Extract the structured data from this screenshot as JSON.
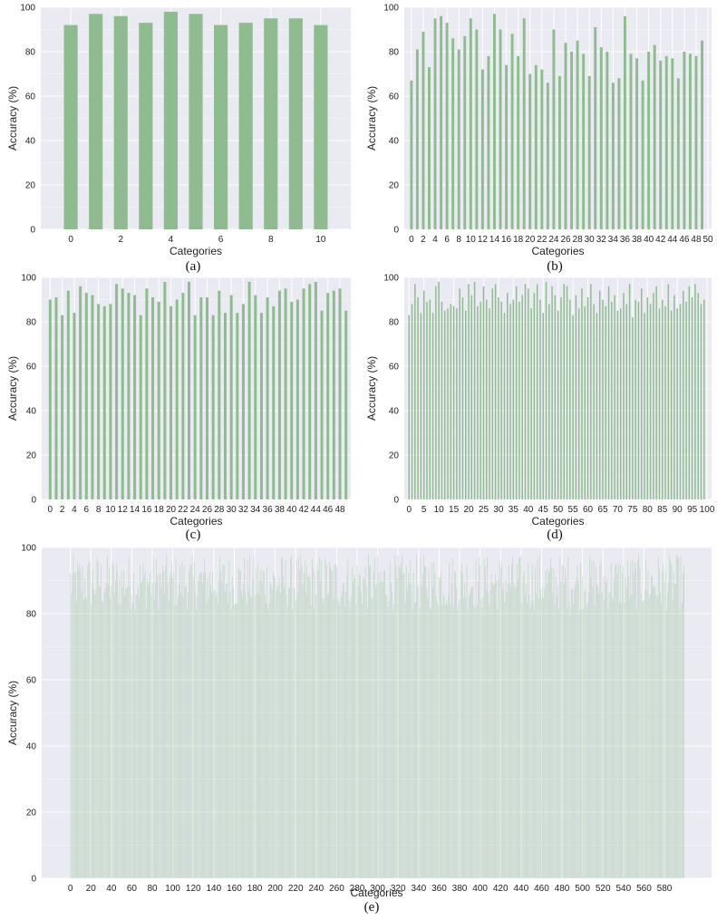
{
  "colors": {
    "panel_bg": "#eaeaf2",
    "grid": "#ffffff",
    "bar": "#8fbc8f"
  },
  "chart_data": [
    {
      "caption": "(a)",
      "type": "bar",
      "xlabel": "Categories",
      "ylabel": "Accuracy (%)",
      "ylim": [
        0,
        100
      ],
      "yticks": [
        0,
        20,
        40,
        60,
        80,
        100
      ],
      "x": [
        0,
        1,
        2,
        3,
        4,
        5,
        6,
        7,
        8,
        9,
        10
      ],
      "xticks": [
        0,
        2,
        4,
        6,
        8,
        10
      ],
      "values": [
        92,
        97,
        96,
        93,
        98,
        97,
        92,
        93,
        95,
        95,
        92
      ],
      "grid": true
    },
    {
      "caption": "(b)",
      "type": "bar",
      "xlabel": "Categories",
      "ylabel": "Accuracy (%)",
      "ylim": [
        0,
        100
      ],
      "yticks": [
        0,
        20,
        40,
        60,
        80,
        100
      ],
      "x": [
        0,
        1,
        2,
        3,
        4,
        5,
        6,
        7,
        8,
        9,
        10,
        11,
        12,
        13,
        14,
        15,
        16,
        17,
        18,
        19,
        20,
        21,
        22,
        23,
        24,
        25,
        26,
        27,
        28,
        29,
        30,
        31,
        32,
        33,
        34,
        35,
        36,
        37,
        38,
        39,
        40,
        41,
        42,
        43,
        44,
        45,
        46,
        47,
        48,
        49
      ],
      "xticks": [
        0,
        2,
        4,
        6,
        8,
        10,
        12,
        14,
        16,
        18,
        20,
        22,
        24,
        26,
        28,
        30,
        32,
        34,
        36,
        38,
        40,
        42,
        44,
        46,
        48,
        50
      ],
      "values": [
        67,
        81,
        89,
        73,
        95,
        96,
        93,
        86,
        81,
        87,
        95,
        90,
        72,
        78,
        97,
        90,
        74,
        88,
        78,
        95,
        70,
        74,
        72,
        66,
        90,
        69,
        84,
        80,
        85,
        79,
        69,
        91,
        82,
        80,
        66,
        68,
        96,
        79,
        77,
        67,
        80,
        83,
        76,
        78,
        77,
        68,
        80,
        79,
        78,
        85
      ],
      "grid": true
    },
    {
      "caption": "(c)",
      "type": "bar",
      "xlabel": "Categories",
      "ylabel": "Accuracy (%)",
      "ylim": [
        0,
        100
      ],
      "yticks": [
        0,
        20,
        40,
        60,
        80,
        100
      ],
      "x": [
        0,
        1,
        2,
        3,
        4,
        5,
        6,
        7,
        8,
        9,
        10,
        11,
        12,
        13,
        14,
        15,
        16,
        17,
        18,
        19,
        20,
        21,
        22,
        23,
        24,
        25,
        26,
        27,
        28,
        29,
        30,
        31,
        32,
        33,
        34,
        35,
        36,
        37,
        38,
        39,
        40,
        41,
        42,
        43,
        44,
        45,
        46,
        47,
        48,
        49
      ],
      "xticks": [
        0,
        2,
        4,
        6,
        8,
        10,
        12,
        14,
        16,
        18,
        20,
        22,
        24,
        26,
        28,
        30,
        32,
        34,
        36,
        38,
        40,
        42,
        44,
        46,
        48
      ],
      "values": [
        90,
        91,
        83,
        94,
        84,
        96,
        93,
        92,
        88,
        87,
        88,
        97,
        95,
        93,
        92,
        83,
        95,
        91,
        89,
        98,
        87,
        90,
        93,
        98,
        83,
        91,
        91,
        83,
        94,
        84,
        92,
        84,
        88,
        98,
        92,
        84,
        91,
        87,
        94,
        95,
        89,
        90,
        95,
        97,
        98,
        85,
        93,
        94,
        95,
        85
      ],
      "grid": true
    },
    {
      "caption": "(d)",
      "type": "bar",
      "xlabel": "Categories",
      "ylabel": "Accuracy (%)",
      "ylim": [
        0,
        100
      ],
      "yticks": [
        0,
        20,
        40,
        60,
        80,
        100
      ],
      "x": [
        0,
        1,
        2,
        3,
        4,
        5,
        6,
        7,
        8,
        9,
        10,
        11,
        12,
        13,
        14,
        15,
        16,
        17,
        18,
        19,
        20,
        21,
        22,
        23,
        24,
        25,
        26,
        27,
        28,
        29,
        30,
        31,
        32,
        33,
        34,
        35,
        36,
        37,
        38,
        39,
        40,
        41,
        42,
        43,
        44,
        45,
        46,
        47,
        48,
        49,
        50,
        51,
        52,
        53,
        54,
        55,
        56,
        57,
        58,
        59,
        60,
        61,
        62,
        63,
        64,
        65,
        66,
        67,
        68,
        69,
        70,
        71,
        72,
        73,
        74,
        75,
        76,
        77,
        78,
        79,
        80,
        81,
        82,
        83,
        84,
        85,
        86,
        87,
        88,
        89,
        90,
        91,
        92,
        93,
        94,
        95,
        96,
        97,
        98,
        99
      ],
      "xticks": [
        0,
        5,
        10,
        15,
        20,
        25,
        30,
        35,
        40,
        45,
        50,
        55,
        60,
        65,
        70,
        75,
        80,
        85,
        90,
        95,
        100
      ],
      "values": [
        83,
        88,
        97,
        91,
        84,
        94,
        89,
        90,
        84,
        96,
        98,
        89,
        85,
        86,
        88,
        87,
        86,
        95,
        91,
        85,
        97,
        92,
        98,
        87,
        89,
        96,
        90,
        86,
        95,
        97,
        91,
        89,
        84,
        93,
        88,
        90,
        96,
        89,
        92,
        97,
        95,
        86,
        93,
        97,
        90,
        84,
        98,
        88,
        96,
        92,
        85,
        91,
        97,
        96,
        90,
        83,
        92,
        86,
        95,
        87,
        91,
        97,
        88,
        84,
        94,
        90,
        87,
        96,
        89,
        92,
        85,
        86,
        93,
        88,
        97,
        82,
        90,
        89,
        95,
        84,
        91,
        88,
        93,
        96,
        86,
        90,
        87,
        97,
        85,
        92,
        86,
        88,
        94,
        89,
        96,
        91,
        97,
        93,
        88,
        90
      ],
      "grid": true
    },
    {
      "caption": "(e)",
      "type": "bar",
      "xlabel": "Categories",
      "ylabel": "Accuracy (%)",
      "ylim": [
        0,
        100
      ],
      "yticks": [
        0,
        20,
        40,
        60,
        80,
        100
      ],
      "xticks": [
        0,
        20,
        40,
        60,
        80,
        100,
        120,
        140,
        160,
        180,
        200,
        220,
        240,
        260,
        280,
        300,
        320,
        340,
        360,
        380,
        400,
        420,
        440,
        460,
        480,
        500,
        520,
        540,
        560,
        580
      ],
      "count": 600,
      "values_min": 81,
      "values_max": 98,
      "grid": true
    }
  ]
}
